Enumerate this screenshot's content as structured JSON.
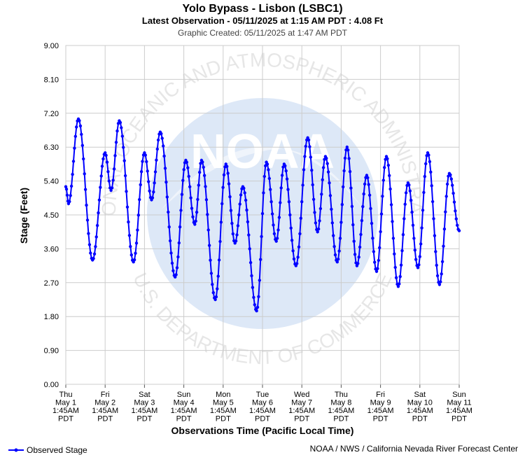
{
  "chart_data": {
    "type": "line",
    "title": "Yolo Bypass - Lisbon (LSBC1)",
    "subtitle": "Latest Observation - 05/11/2025 at 1:15 AM PDT : 4.08 Ft",
    "created": "Graphic Created: 05/11/2025 at 1:47 AM PDT",
    "xlabel": "Observations Time (Pacific Local Time)",
    "ylabel": "Stage (Feet)",
    "ylim": [
      0,
      9
    ],
    "xlim": [
      0,
      10
    ],
    "grid": true,
    "legend_position": "bottom-left",
    "credit": "NOAA / NWS / California Nevada River Forecast Center",
    "watermark": {
      "text_top": "NATIONAL OCEANIC AND ATMOSPHERIC ADMINISTRATION",
      "text_bottom": "U.S. DEPARTMENT OF COMMERCE",
      "logo": "NOAA"
    },
    "y_ticks": [
      "0.00",
      "0.90",
      "1.80",
      "2.70",
      "3.60",
      "4.50",
      "5.40",
      "6.30",
      "7.20",
      "8.10",
      "9.00"
    ],
    "x_ticks": [
      {
        "day": "Thu",
        "date": "May 1",
        "time": "1:45AM",
        "tz": "PDT"
      },
      {
        "day": "Fri",
        "date": "May 2",
        "time": "1:45AM",
        "tz": "PDT"
      },
      {
        "day": "Sat",
        "date": "May 3",
        "time": "1:45AM",
        "tz": "PDT"
      },
      {
        "day": "Sun",
        "date": "May 4",
        "time": "1:45AM",
        "tz": "PDT"
      },
      {
        "day": "Mon",
        "date": "May 5",
        "time": "1:45AM",
        "tz": "PDT"
      },
      {
        "day": "Tue",
        "date": "May 6",
        "time": "1:45AM",
        "tz": "PDT"
      },
      {
        "day": "Wed",
        "date": "May 7",
        "time": "1:45AM",
        "tz": "PDT"
      },
      {
        "day": "Thu",
        "date": "May 8",
        "time": "1:45AM",
        "tz": "PDT"
      },
      {
        "day": "Fri",
        "date": "May 9",
        "time": "1:45AM",
        "tz": "PDT"
      },
      {
        "day": "Sat",
        "date": "May 10",
        "time": "1:45AM",
        "tz": "PDT"
      },
      {
        "day": "Sun",
        "date": "May 11",
        "time": "1:45AM",
        "tz": "PDT"
      }
    ],
    "series": [
      {
        "name": "Observed Stage",
        "color": "#0000ff",
        "turning_points": [
          [
            0.0,
            5.25
          ],
          [
            0.07,
            4.8
          ],
          [
            0.32,
            7.05
          ],
          [
            0.68,
            3.3
          ],
          [
            1.0,
            6.15
          ],
          [
            1.15,
            5.15
          ],
          [
            1.36,
            7.0
          ],
          [
            1.72,
            3.25
          ],
          [
            2.0,
            6.15
          ],
          [
            2.18,
            4.9
          ],
          [
            2.4,
            6.7
          ],
          [
            2.78,
            2.85
          ],
          [
            3.05,
            5.95
          ],
          [
            3.28,
            4.25
          ],
          [
            3.45,
            5.95
          ],
          [
            3.8,
            2.25
          ],
          [
            4.07,
            5.85
          ],
          [
            4.3,
            3.75
          ],
          [
            4.5,
            5.25
          ],
          [
            4.85,
            1.95
          ],
          [
            5.1,
            5.9
          ],
          [
            5.35,
            3.8
          ],
          [
            5.55,
            5.85
          ],
          [
            5.85,
            3.15
          ],
          [
            6.15,
            6.55
          ],
          [
            6.4,
            4.05
          ],
          [
            6.6,
            6.05
          ],
          [
            6.9,
            3.25
          ],
          [
            7.15,
            6.3
          ],
          [
            7.4,
            3.15
          ],
          [
            7.65,
            5.55
          ],
          [
            7.9,
            3.0
          ],
          [
            8.15,
            6.05
          ],
          [
            8.45,
            2.6
          ],
          [
            8.7,
            5.35
          ],
          [
            8.95,
            3.1
          ],
          [
            9.2,
            6.15
          ],
          [
            9.5,
            2.65
          ],
          [
            9.75,
            5.6
          ],
          [
            10.0,
            4.08
          ]
        ]
      }
    ]
  }
}
